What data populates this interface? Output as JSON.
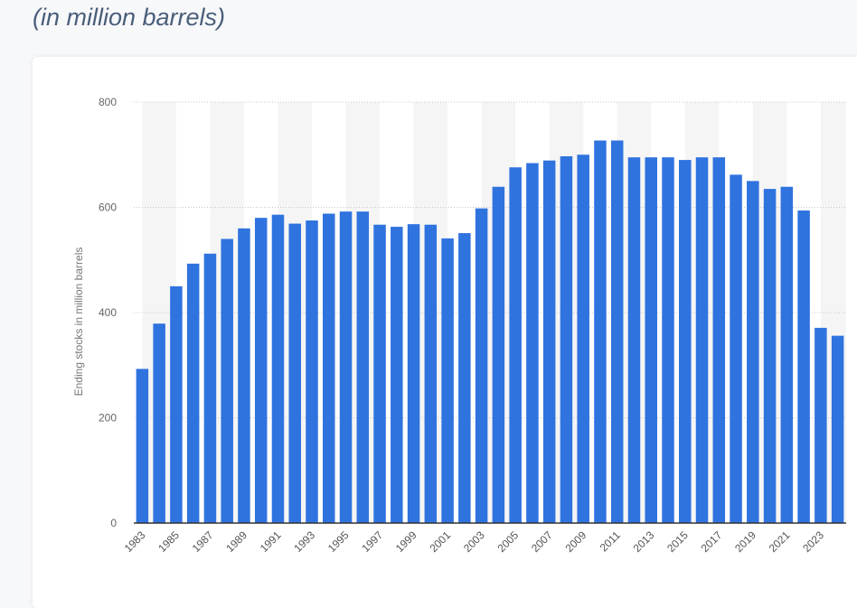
{
  "header": {
    "subtitle": "(in million barrels)"
  },
  "chart_data": {
    "type": "bar",
    "title": "",
    "xlabel": "",
    "ylabel": "Ending stocks in million barrels",
    "ylim": [
      0,
      800
    ],
    "yticks": [
      0,
      200,
      400,
      600,
      800
    ],
    "grid": true,
    "bar_color": "#2f73df",
    "band_color": "#f5f5f5",
    "categories": [
      "1983",
      "1984",
      "1985",
      "1986",
      "1987",
      "1988",
      "1989",
      "1990",
      "1991",
      "1992",
      "1993",
      "1994",
      "1995",
      "1996",
      "1997",
      "1998",
      "1999",
      "2000",
      "2001",
      "2002",
      "2003",
      "2004",
      "2005",
      "2006",
      "2007",
      "2008",
      "2009",
      "2010",
      "2011",
      "2012",
      "2013",
      "2014",
      "2015",
      "2016",
      "2017",
      "2018",
      "2019",
      "2020",
      "2021",
      "2022",
      "2023",
      "2024"
    ],
    "xtick_labels": [
      "1983",
      "1985",
      "1987",
      "1989",
      "1991",
      "1993",
      "1995",
      "1997",
      "1999",
      "2001",
      "2003",
      "2005",
      "2007",
      "2009",
      "2011",
      "2013",
      "2015",
      "2017",
      "2019",
      "2021",
      "2023"
    ],
    "values": [
      293,
      379,
      450,
      493,
      512,
      540,
      560,
      580,
      586,
      569,
      575,
      588,
      592,
      592,
      567,
      563,
      568,
      567,
      541,
      551,
      598,
      639,
      676,
      684,
      689,
      697,
      700,
      727,
      727,
      695,
      695,
      695,
      690,
      695,
      695,
      662,
      650,
      635,
      639,
      594,
      371,
      356
    ]
  }
}
